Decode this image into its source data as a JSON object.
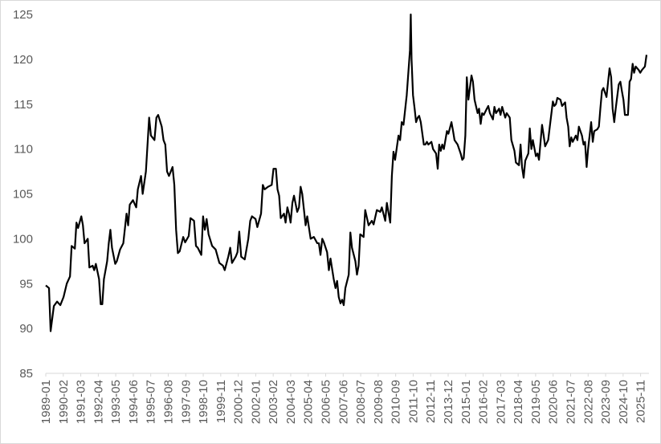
{
  "chart_data": {
    "type": "line",
    "color": "#000000",
    "grid": false,
    "xlim": [
      1989,
      2026.25
    ],
    "ylim": [
      85,
      125
    ],
    "yticks": [
      85,
      90,
      95,
      100,
      105,
      110,
      115,
      120,
      125
    ],
    "xticks": [
      {
        "value": 1989,
        "label": "1989-01"
      },
      {
        "value": 1990.083,
        "label": "1990-02"
      },
      {
        "value": 1991.167,
        "label": "1991-03"
      },
      {
        "value": 1992.25,
        "label": "1992-04"
      },
      {
        "value": 1993.333,
        "label": "1993-05"
      },
      {
        "value": 1994.417,
        "label": "1994-06"
      },
      {
        "value": 1995.5,
        "label": "1995-07"
      },
      {
        "value": 1996.583,
        "label": "1996-08"
      },
      {
        "value": 1997.667,
        "label": "1997-09"
      },
      {
        "value": 1998.75,
        "label": "1998-10"
      },
      {
        "value": 1999.833,
        "label": "1999-11"
      },
      {
        "value": 2000.917,
        "label": "2000-12"
      },
      {
        "value": 2002,
        "label": "2002-01"
      },
      {
        "value": 2003.083,
        "label": "2003-02"
      },
      {
        "value": 2004.167,
        "label": "2004-03"
      },
      {
        "value": 2005.25,
        "label": "2005-04"
      },
      {
        "value": 2006.333,
        "label": "2006-05"
      },
      {
        "value": 2007.417,
        "label": "2007-06"
      },
      {
        "value": 2008.5,
        "label": "2008-07"
      },
      {
        "value": 2009.583,
        "label": "2009-08"
      },
      {
        "value": 2010.667,
        "label": "2010-09"
      },
      {
        "value": 2011.75,
        "label": "2011-10"
      },
      {
        "value": 2012.833,
        "label": "2012-11"
      },
      {
        "value": 2013.917,
        "label": "2013-12"
      },
      {
        "value": 2015,
        "label": "2015-01"
      },
      {
        "value": 2016.083,
        "label": "2016-02"
      },
      {
        "value": 2017.167,
        "label": "2017-03"
      },
      {
        "value": 2018.25,
        "label": "2018-04"
      },
      {
        "value": 2019.333,
        "label": "2019-05"
      },
      {
        "value": 2020.417,
        "label": "2020-06"
      },
      {
        "value": 2021.5,
        "label": "2021-07"
      },
      {
        "value": 2022.583,
        "label": "2022-08"
      },
      {
        "value": 2023.667,
        "label": "2023-09"
      },
      {
        "value": 2024.75,
        "label": "2024-10"
      },
      {
        "value": 2025.833,
        "label": "2025-11"
      }
    ],
    "x": [
      1989.0,
      1989.2,
      1989.3,
      1989.5,
      1989.7,
      1989.9,
      1990.1,
      1990.3,
      1990.5,
      1990.6,
      1990.8,
      1990.9,
      1991.0,
      1991.2,
      1991.3,
      1991.4,
      1991.6,
      1991.7,
      1991.9,
      1992.0,
      1992.1,
      1992.3,
      1992.4,
      1992.5,
      1992.6,
      1992.8,
      1992.9,
      1993.0,
      1993.1,
      1993.3,
      1993.4,
      1993.6,
      1993.8,
      1994.0,
      1994.1,
      1994.2,
      1994.4,
      1994.6,
      1994.7,
      1994.9,
      1995.0,
      1995.2,
      1995.4,
      1995.51,
      1995.73,
      1995.85,
      1995.96,
      1996.18,
      1996.29,
      1996.4,
      1996.51,
      1996.63,
      1996.85,
      1996.96,
      1997.07,
      1997.18,
      1997.29,
      1997.51,
      1997.63,
      1997.85,
      1997.96,
      1998.18,
      1998.3,
      1998.41,
      1998.63,
      1998.74,
      1998.85,
      1998.96,
      1999.08,
      1999.3,
      1999.52,
      1999.75,
      1999.97,
      2000.08,
      2000.3,
      2000.42,
      2000.53,
      2000.76,
      2000.87,
      2000.98,
      2001.1,
      2001.32,
      2001.54,
      2001.66,
      2001.77,
      2001.99,
      2002.1,
      2002.33,
      2002.44,
      2002.55,
      2002.77,
      2002.99,
      2003.1,
      2003.25,
      2003.35,
      2003.45,
      2003.55,
      2003.75,
      2003.85,
      2003.96,
      2004.06,
      2004.16,
      2004.27,
      2004.37,
      2004.57,
      2004.68,
      2004.78,
      2004.88,
      2005.09,
      2005.19,
      2005.4,
      2005.6,
      2005.81,
      2005.91,
      2006.01,
      2006.12,
      2006.22,
      2006.42,
      2006.53,
      2006.63,
      2006.83,
      2006.94,
      2007.04,
      2007.14,
      2007.25,
      2007.35,
      2007.45,
      2007.55,
      2007.76,
      2007.86,
      2007.96,
      2008.17,
      2008.27,
      2008.37,
      2008.47,
      2008.68,
      2008.78,
      2008.99,
      2009.19,
      2009.3,
      2009.5,
      2009.71,
      2009.81,
      2010.02,
      2010.12,
      2010.33,
      2010.43,
      2010.53,
      2010.63,
      2010.84,
      2010.94,
      2011.04,
      2011.15,
      2011.35,
      2011.55,
      2011.6,
      2011.65,
      2011.74,
      2011.84,
      2011.93,
      2012.03,
      2012.12,
      2012.22,
      2012.41,
      2012.5,
      2012.6,
      2012.69,
      2012.88,
      2012.98,
      2013.17,
      2013.27,
      2013.36,
      2013.46,
      2013.55,
      2013.65,
      2013.84,
      2013.93,
      2014.12,
      2014.22,
      2014.31,
      2014.5,
      2014.69,
      2014.79,
      2014.88,
      2014.98,
      2015.07,
      2015.17,
      2015.36,
      2015.45,
      2015.55,
      2015.74,
      2015.83,
      2015.93,
      2016.02,
      2016.12,
      2016.31,
      2016.4,
      2016.5,
      2016.69,
      2016.78,
      2016.88,
      2017.07,
      2017.16,
      2017.26,
      2017.45,
      2017.54,
      2017.73,
      2017.83,
      2018.02,
      2018.11,
      2018.3,
      2018.4,
      2018.49,
      2018.59,
      2018.69,
      2018.88,
      2018.97,
      2019.07,
      2019.16,
      2019.35,
      2019.45,
      2019.54,
      2019.73,
      2019.83,
      2019.92,
      2020.11,
      2020.21,
      2020.4,
      2020.49,
      2020.59,
      2020.68,
      2020.87,
      2020.97,
      2021.16,
      2021.25,
      2021.35,
      2021.44,
      2021.54,
      2021.63,
      2021.82,
      2021.92,
      2022.01,
      2022.2,
      2022.3,
      2022.39,
      2022.49,
      2022.58,
      2022.77,
      2022.87,
      2022.96,
      2023.15,
      2023.25,
      2023.34,
      2023.44,
      2023.53,
      2023.72,
      2023.82,
      2023.91,
      2024.01,
      2024.1,
      2024.2,
      2024.29,
      2024.48,
      2024.58,
      2024.67,
      2024.77,
      2024.86,
      2025.05,
      2025.15,
      2025.24,
      2025.34,
      2025.43,
      2025.53,
      2025.72,
      2025.81,
      2025.91,
      2026.1,
      2026.2
    ],
    "values": [
      94.8,
      94.5,
      89.7,
      92.5,
      93.0,
      92.6,
      93.5,
      95.0,
      95.8,
      99.2,
      98.9,
      101.8,
      101.2,
      102.5,
      101.5,
      99.5,
      100.0,
      96.8,
      97.0,
      96.5,
      97.2,
      95.5,
      92.7,
      92.7,
      95.5,
      97.5,
      99.5,
      101.0,
      99.0,
      97.2,
      97.5,
      98.8,
      99.5,
      102.8,
      101.5,
      103.8,
      104.3,
      103.5,
      105.5,
      107.0,
      105.0,
      107.5,
      113.5,
      111.5,
      111.0,
      113.5,
      113.8,
      112.5,
      111.0,
      110.5,
      107.5,
      107.0,
      108.0,
      106.0,
      101.0,
      98.4,
      98.6,
      100.2,
      99.6,
      100.3,
      102.3,
      102.0,
      99.2,
      99.0,
      98.2,
      102.5,
      101.0,
      102.2,
      100.5,
      99.2,
      98.8,
      97.3,
      97.0,
      96.5,
      98.0,
      99.0,
      97.3,
      98.0,
      98.5,
      100.8,
      98.0,
      97.7,
      100.0,
      102.0,
      102.5,
      102.2,
      101.3,
      102.8,
      106.0,
      105.5,
      105.8,
      106.0,
      107.8,
      107.8,
      105.5,
      104.8,
      102.3,
      102.8,
      101.8,
      103.5,
      102.8,
      101.8,
      104.0,
      104.8,
      103.0,
      103.5,
      105.8,
      105.0,
      101.5,
      102.5,
      100.0,
      100.2,
      99.5,
      99.5,
      98.2,
      100.0,
      99.6,
      98.5,
      96.5,
      97.8,
      95.5,
      94.5,
      95.3,
      93.5,
      92.8,
      93.2,
      92.6,
      94.5,
      96.0,
      100.7,
      99.0,
      97.5,
      96.0,
      97.0,
      100.5,
      100.2,
      103.2,
      101.5,
      102.0,
      101.6,
      103.2,
      103.0,
      103.5,
      102.0,
      104.0,
      101.8,
      107.0,
      109.7,
      108.8,
      111.5,
      111.0,
      113.0,
      112.7,
      116.0,
      121.0,
      125.0,
      120.0,
      116.0,
      114.5,
      113.0,
      113.5,
      113.7,
      113.0,
      110.5,
      110.5,
      110.8,
      110.5,
      110.8,
      110.0,
      109.5,
      107.8,
      110.5,
      109.8,
      110.5,
      110.0,
      112.0,
      111.7,
      113.0,
      112.0,
      111.0,
      110.5,
      109.5,
      108.8,
      109.0,
      111.5,
      118.0,
      115.5,
      118.2,
      117.5,
      115.5,
      114.0,
      114.5,
      112.8,
      114.0,
      113.8,
      114.5,
      114.8,
      114.0,
      113.3,
      114.7,
      114.0,
      114.5,
      113.8,
      114.7,
      113.5,
      114.0,
      113.5,
      111.0,
      109.8,
      108.5,
      108.2,
      110.5,
      108.0,
      106.8,
      108.7,
      109.5,
      112.3,
      110.0,
      111.0,
      109.2,
      109.5,
      108.8,
      112.7,
      111.5,
      110.3,
      111.0,
      112.5,
      115.3,
      114.8,
      115.0,
      115.7,
      115.5,
      114.8,
      115.2,
      113.5,
      112.5,
      110.3,
      111.3,
      110.8,
      111.5,
      111.0,
      112.5,
      111.5,
      110.5,
      110.8,
      108.0,
      110.0,
      113.0,
      110.8,
      112.0,
      112.2,
      112.5,
      114.5,
      116.5,
      116.8,
      115.8,
      117.5,
      119.0,
      118.0,
      114.5,
      113.0,
      114.5,
      117.2,
      117.5,
      116.5,
      115.5,
      113.8,
      113.8,
      117.5,
      117.8,
      119.5,
      118.5,
      119.2,
      118.8,
      118.5,
      118.8,
      119.2,
      120.5
    ]
  }
}
